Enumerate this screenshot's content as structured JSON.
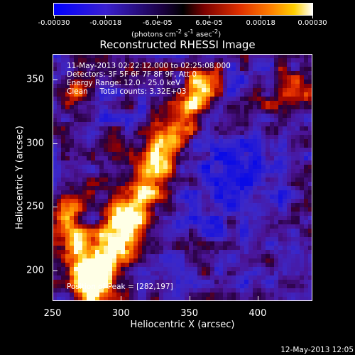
{
  "colorbar": {
    "tick_labels": [
      "-0.00030",
      "-0.00018",
      "-6.0e-05",
      "6.0e-05",
      "0.00018",
      "0.00030"
    ],
    "units_html": "(photons cm<sup>-2</sup> s<sup>-1</sup> asec<sup>-2</sup>)",
    "range": [
      -0.0003,
      0.0003
    ],
    "colors": [
      "#0000ff",
      "#4a0aa0",
      "#000000",
      "#aa0000",
      "#ff6000",
      "#ffcc00",
      "#ffffff"
    ]
  },
  "chart_data": {
    "type": "heatmap",
    "title": "Reconstructed RHESSI Image",
    "xlabel": "Heliocentric X (arcsec)",
    "ylabel": "Heliocentric Y (arcsec)",
    "xlim": [
      250,
      440
    ],
    "ylim": [
      176,
      370
    ],
    "x_ticks": [
      250,
      300,
      350,
      400
    ],
    "y_ticks": [
      200,
      250,
      300,
      350
    ],
    "annotations": [
      "11-May-2013 02:22:12.000 to 02:25:08.000",
      "Detectors: 3F 5F 6F 7F 8F 9F, Att 0",
      "Energy Range: 12.0 - 25.0 keV",
      "Clean     Total counts: 3.32E+03"
    ],
    "peak_label": "Position of Peak = [282,197]",
    "peak": [
      282,
      197
    ]
  },
  "footer": {
    "timestamp": "12-May-2013 12:05"
  }
}
